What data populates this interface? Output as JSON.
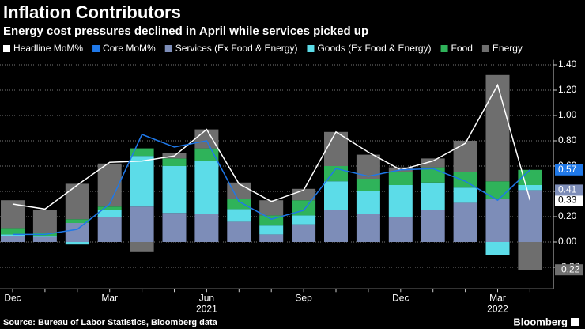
{
  "chart_data": {
    "type": "stacked_bar_line",
    "title": "Inflation Contributors",
    "subtitle": "Energy cost pressures declined in April while services picked up",
    "source": "Source: Bureau of Labor Statistics, Bloomberg data",
    "brand": "Bloomberg",
    "categories": [
      "Dec",
      null,
      null,
      "Mar",
      null,
      null,
      "Jun",
      null,
      null,
      "Sep",
      null,
      null,
      "Dec",
      null,
      null,
      "Mar",
      null
    ],
    "x_group_labels": [
      {
        "category_index": 6,
        "label": "2021"
      },
      {
        "category_index": 15,
        "label": "2022"
      }
    ],
    "series": [
      {
        "name": "Headline MoM%",
        "kind": "line",
        "color": "#ffffff",
        "end_label": true,
        "values": [
          0.3,
          0.26,
          0.45,
          0.63,
          0.64,
          0.68,
          0.89,
          0.46,
          0.32,
          0.41,
          0.87,
          0.71,
          0.57,
          0.64,
          0.78,
          1.24,
          0.33
        ]
      },
      {
        "name": "Core MoM%",
        "kind": "line",
        "color": "#1f78e8",
        "end_label": true,
        "values": [
          0.06,
          0.06,
          0.1,
          0.3,
          0.85,
          0.75,
          0.8,
          0.32,
          0.18,
          0.25,
          0.58,
          0.52,
          0.57,
          0.58,
          0.48,
          0.33,
          0.57
        ]
      },
      {
        "name": "Services (Ex Food & Energy)",
        "kind": "bar",
        "color": "#7d8db8",
        "end_label": true,
        "values": [
          0.05,
          0.04,
          0.15,
          0.2,
          0.28,
          0.23,
          0.22,
          0.16,
          0.06,
          0.14,
          0.25,
          0.22,
          0.2,
          0.25,
          0.31,
          0.34,
          0.41
        ]
      },
      {
        "name": "Goods (Ex Food & Energy)",
        "kind": "bar",
        "color": "#5cdce8",
        "values": [
          0.01,
          0.01,
          -0.02,
          0.05,
          0.4,
          0.37,
          0.42,
          0.1,
          0.07,
          0.07,
          0.23,
          0.18,
          0.25,
          0.22,
          0.12,
          -0.1,
          0.04
        ]
      },
      {
        "name": "Food",
        "kind": "bar",
        "color": "#2fb35a",
        "values": [
          0.05,
          0.02,
          0.03,
          0.03,
          0.06,
          0.06,
          0.1,
          0.08,
          0.08,
          0.12,
          0.12,
          0.1,
          0.1,
          0.12,
          0.12,
          0.14,
          0.12
        ]
      },
      {
        "name": "Energy",
        "kind": "bar",
        "color": "#6e6e6e",
        "end_label": true,
        "values": [
          0.22,
          0.18,
          0.28,
          0.34,
          -0.08,
          0.04,
          0.15,
          0.13,
          0.12,
          0.09,
          0.27,
          0.19,
          0.04,
          0.07,
          0.25,
          0.84,
          -0.22
        ]
      }
    ],
    "ylim": [
      -0.37,
      1.44
    ],
    "yticks": [
      {
        "value": -0.2,
        "label": "-0.20"
      },
      {
        "value": 0,
        "label": "0.00"
      },
      {
        "value": 0.2,
        "label": "0.20"
      },
      {
        "value": 0.4,
        "label": "0.40"
      },
      {
        "value": 0.6,
        "label": "0.60"
      },
      {
        "value": 0.8,
        "label": "0.80"
      },
      {
        "value": 1.0,
        "label": "1.00"
      },
      {
        "value": 1.2,
        "label": "1.20"
      },
      {
        "value": 1.4,
        "label": "1.40"
      }
    ],
    "grid": true
  }
}
